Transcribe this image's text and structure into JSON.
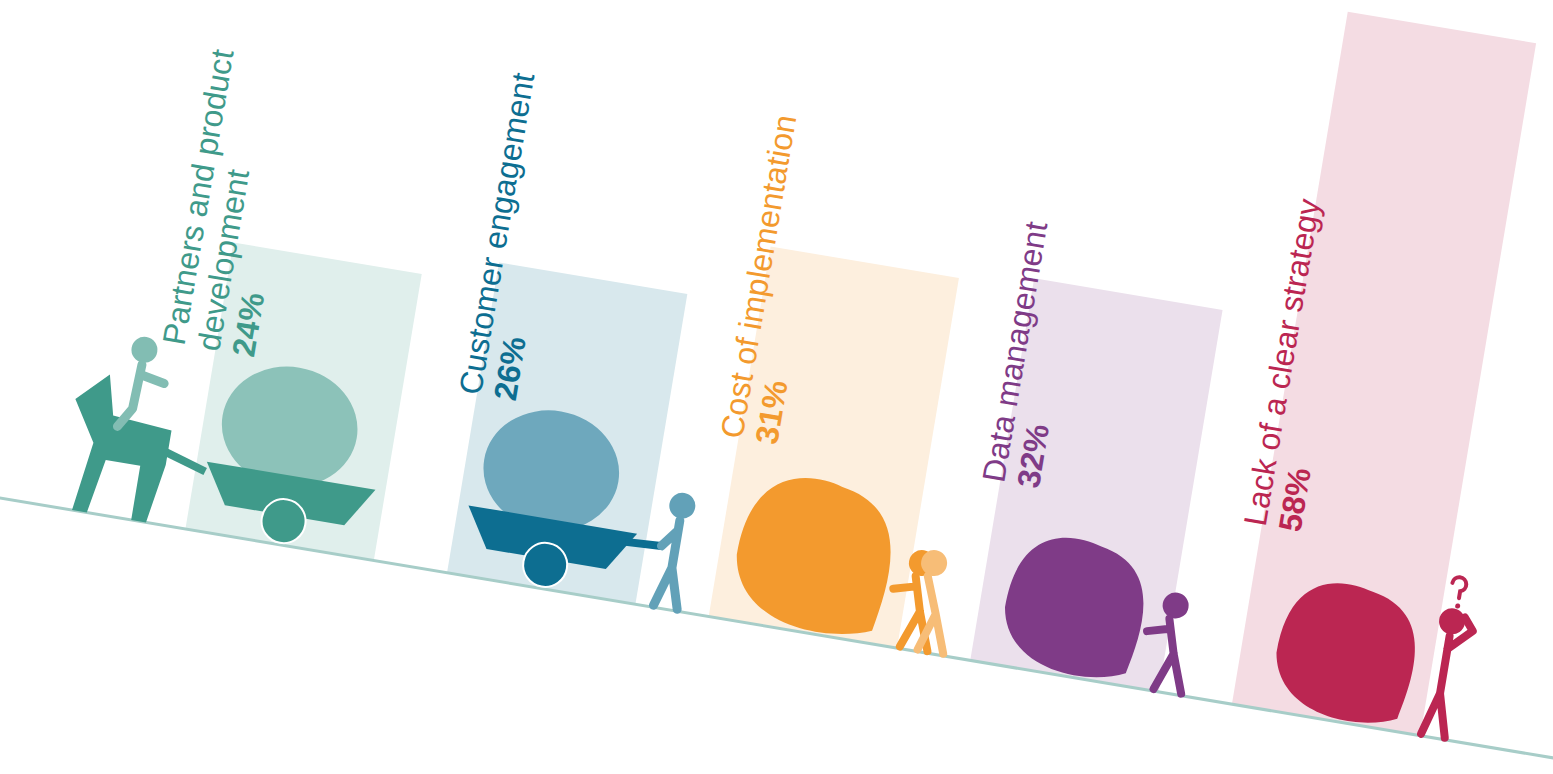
{
  "chart_data": {
    "type": "bar",
    "categories": [
      "Partners and product development",
      "Customer engagement",
      "Cost of implementation",
      "Data management",
      "Lack of a clear strategy"
    ],
    "values": [
      24,
      26,
      31,
      32,
      58
    ],
    "value_labels": [
      "24%",
      "26%",
      "31%",
      "32%",
      "58%"
    ],
    "colors": [
      "#3f9a8a",
      "#0d6e91",
      "#f39a2e",
      "#7f3b87",
      "#bb2652"
    ],
    "data_labels": true,
    "tick_labels": false
  }
}
